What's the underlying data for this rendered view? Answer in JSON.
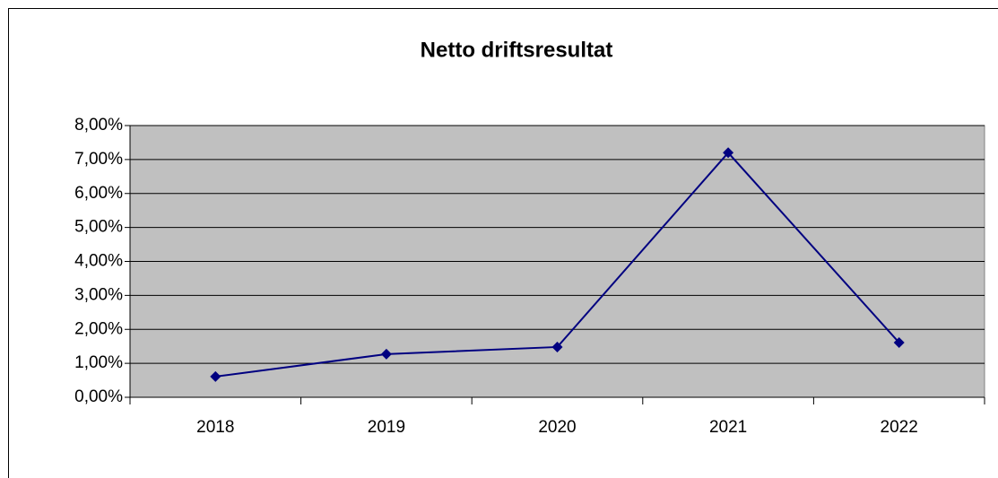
{
  "chart_data": {
    "type": "line",
    "title": "Netto driftsresultat",
    "categories": [
      "2018",
      "2019",
      "2020",
      "2021",
      "2022"
    ],
    "series": [
      {
        "name": "Netto driftsresultat",
        "color": "#000080",
        "values": [
          0.61,
          1.27,
          1.48,
          7.2,
          1.61
        ]
      }
    ],
    "ylim": [
      0,
      8
    ],
    "yticks": [
      {
        "value": 0,
        "label": "0,00%"
      },
      {
        "value": 1,
        "label": "1,00%"
      },
      {
        "value": 2,
        "label": "2,00%"
      },
      {
        "value": 3,
        "label": "3,00%"
      },
      {
        "value": 4,
        "label": "4,00%"
      },
      {
        "value": 5,
        "label": "5,00%"
      },
      {
        "value": 6,
        "label": "6,00%"
      },
      {
        "value": 7,
        "label": "7,00%"
      },
      {
        "value": 8,
        "label": "8,00%"
      }
    ],
    "grid": true,
    "plot_background": "#c0c0c0"
  }
}
